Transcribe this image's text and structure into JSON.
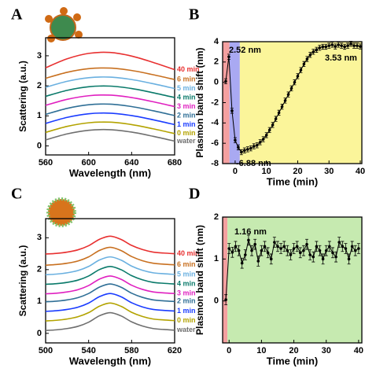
{
  "chart_data": [
    {
      "type": "line",
      "label": "A",
      "xlabel": "Wavelength (nm)",
      "ylabel": "Scattering (a.u.)",
      "xlim": [
        560,
        680
      ],
      "xticks": [
        560,
        600,
        640,
        680
      ],
      "ylim": [
        -0.3,
        3.6
      ],
      "yticks": [
        0,
        1,
        2,
        3
      ],
      "x": [
        560,
        580,
        600,
        620,
        640,
        660,
        680
      ],
      "series": [
        {
          "name": "water",
          "color": "#6f6f6f",
          "values": [
            0.2,
            0.4,
            0.52,
            0.54,
            0.46,
            0.32,
            0.16
          ]
        },
        {
          "name": "0 min",
          "color": "#b3a300",
          "values": [
            0.45,
            0.65,
            0.77,
            0.79,
            0.71,
            0.57,
            0.41
          ]
        },
        {
          "name": "1 min",
          "color": "#1a3cff",
          "values": [
            0.75,
            0.95,
            1.07,
            1.09,
            1.01,
            0.87,
            0.71
          ]
        },
        {
          "name": "2 min",
          "color": "#2f6f96",
          "values": [
            1.05,
            1.25,
            1.37,
            1.39,
            1.31,
            1.17,
            1.01
          ]
        },
        {
          "name": "3 min",
          "color": "#e020c0",
          "values": [
            1.35,
            1.55,
            1.67,
            1.69,
            1.61,
            1.47,
            1.31
          ]
        },
        {
          "name": "4 min",
          "color": "#0a7a6a",
          "values": [
            1.65,
            1.85,
            1.97,
            1.99,
            1.91,
            1.77,
            1.61
          ]
        },
        {
          "name": "5 min",
          "color": "#6ab0e0",
          "values": [
            1.95,
            2.15,
            2.27,
            2.29,
            2.21,
            2.07,
            1.91
          ]
        },
        {
          "name": "6 min",
          "color": "#c87020",
          "values": [
            2.25,
            2.45,
            2.57,
            2.59,
            2.51,
            2.37,
            2.21
          ]
        },
        {
          "name": "40 min",
          "color": "#e83030",
          "values": [
            2.6,
            2.9,
            3.08,
            3.11,
            2.99,
            2.78,
            2.54
          ]
        }
      ]
    },
    {
      "type": "errorbar",
      "label": "B",
      "xlabel": "Time (min)",
      "ylabel": "Plasmon band shift (nm)",
      "xlim": [
        -4,
        40.5
      ],
      "xticks": [
        0,
        10,
        20,
        30,
        40
      ],
      "ylim": [
        -8,
        4
      ],
      "yticks": [
        -8,
        -6,
        -4,
        -2,
        0,
        2,
        4
      ],
      "bands": [
        {
          "from": -4,
          "to": -1.8,
          "color": "#f4a0a0"
        },
        {
          "from": -1.8,
          "to": 1.5,
          "color": "#a9a9f2"
        },
        {
          "from": 1.5,
          "to": 40.5,
          "color": "#fbf59a"
        }
      ],
      "annotations": [
        "2.52 nm",
        "-6.88 nm",
        "3.53 nm"
      ],
      "error": 0.25,
      "color": "#000000",
      "x": [
        -3,
        -2,
        -1,
        0,
        1,
        2,
        3,
        4,
        5,
        6,
        7,
        8,
        9,
        10,
        11,
        12,
        13,
        14,
        15,
        16,
        17,
        18,
        19,
        20,
        21,
        22,
        23,
        24,
        25,
        26,
        27,
        28,
        29,
        30,
        31,
        32,
        33,
        34,
        35,
        36,
        37,
        38,
        39,
        40
      ],
      "values": [
        0.1,
        2.52,
        -2.8,
        -5.7,
        -6.4,
        -6.88,
        -6.7,
        -6.6,
        -6.5,
        -6.3,
        -6.2,
        -5.9,
        -5.6,
        -5.2,
        -4.7,
        -4.2,
        -3.6,
        -3.0,
        -2.4,
        -1.8,
        -1.2,
        -0.6,
        0.0,
        0.6,
        1.2,
        1.8,
        2.3,
        2.7,
        3.0,
        3.2,
        3.4,
        3.5,
        3.5,
        3.6,
        3.7,
        3.53,
        3.7,
        3.6,
        3.5,
        3.6,
        3.8,
        3.6,
        3.6,
        3.53
      ]
    },
    {
      "type": "line",
      "label": "C",
      "xlabel": "Wavelength (nm)",
      "ylabel": "Scattering (a.u.)",
      "xlim": [
        500,
        620
      ],
      "xticks": [
        500,
        540,
        580,
        620
      ],
      "ylim": [
        -0.3,
        3.6
      ],
      "yticks": [
        0,
        1,
        2,
        3
      ],
      "x": [
        500,
        510,
        520,
        530,
        540,
        550,
        560,
        570,
        580,
        590,
        600,
        610,
        620
      ],
      "series": [
        {
          "name": "water",
          "color": "#6f6f6f",
          "values": [
            0.09,
            0.11,
            0.15,
            0.22,
            0.35,
            0.55,
            0.65,
            0.55,
            0.36,
            0.23,
            0.15,
            0.12,
            0.1
          ]
        },
        {
          "name": "0 min",
          "color": "#b3a300",
          "values": [
            0.39,
            0.41,
            0.45,
            0.52,
            0.65,
            0.85,
            0.95,
            0.85,
            0.66,
            0.53,
            0.45,
            0.42,
            0.4
          ]
        },
        {
          "name": "1 min",
          "color": "#1a3cff",
          "values": [
            0.69,
            0.71,
            0.75,
            0.82,
            0.95,
            1.15,
            1.25,
            1.15,
            0.96,
            0.83,
            0.75,
            0.72,
            0.7
          ]
        },
        {
          "name": "2 min",
          "color": "#2f6f96",
          "values": [
            0.99,
            1.01,
            1.05,
            1.12,
            1.25,
            1.45,
            1.55,
            1.45,
            1.26,
            1.13,
            1.05,
            1.02,
            1.0
          ]
        },
        {
          "name": "3 min",
          "color": "#e020c0",
          "values": [
            1.24,
            1.26,
            1.3,
            1.37,
            1.5,
            1.7,
            1.8,
            1.7,
            1.51,
            1.38,
            1.3,
            1.27,
            1.25
          ]
        },
        {
          "name": "4 min",
          "color": "#0a7a6a",
          "values": [
            1.54,
            1.56,
            1.6,
            1.67,
            1.8,
            2.0,
            2.1,
            2.0,
            1.81,
            1.68,
            1.6,
            1.57,
            1.55
          ]
        },
        {
          "name": "5 min",
          "color": "#6ab0e0",
          "values": [
            1.84,
            1.86,
            1.9,
            1.97,
            2.1,
            2.3,
            2.4,
            2.3,
            2.11,
            1.98,
            1.9,
            1.87,
            1.85
          ]
        },
        {
          "name": "6 min",
          "color": "#c87020",
          "values": [
            2.14,
            2.16,
            2.2,
            2.27,
            2.4,
            2.6,
            2.7,
            2.6,
            2.41,
            2.28,
            2.2,
            2.17,
            2.15
          ]
        },
        {
          "name": "40 min",
          "color": "#e83030",
          "values": [
            2.49,
            2.51,
            2.55,
            2.62,
            2.75,
            2.95,
            3.05,
            2.95,
            2.76,
            2.63,
            2.55,
            2.52,
            2.5
          ]
        }
      ]
    },
    {
      "type": "errorbar",
      "label": "D",
      "xlabel": "Time (min)",
      "ylabel": "Plasmon band shift (nm)",
      "xlim": [
        -2,
        41
      ],
      "xticks": [
        0,
        10,
        20,
        30,
        40
      ],
      "ylim": [
        -1,
        2
      ],
      "yticks": [
        0,
        1,
        2
      ],
      "bands": [
        {
          "from": -2,
          "to": -0.5,
          "color": "#f4a0a0"
        },
        {
          "from": -0.5,
          "to": 41,
          "color": "#c6eab0"
        }
      ],
      "annotations": [
        "1.16 nm"
      ],
      "error": 0.12,
      "color": "#000000",
      "x": [
        -1,
        0,
        1,
        2,
        3,
        4,
        5,
        6,
        7,
        8,
        9,
        10,
        11,
        12,
        13,
        14,
        15,
        16,
        17,
        18,
        19,
        20,
        21,
        22,
        23,
        24,
        25,
        26,
        27,
        28,
        29,
        30,
        31,
        32,
        33,
        34,
        35,
        36,
        37,
        38,
        39,
        40
      ],
      "values": [
        0.03,
        1.25,
        1.16,
        1.3,
        1.2,
        0.9,
        1.1,
        1.45,
        1.2,
        1.35,
        0.95,
        1.2,
        1.3,
        1.15,
        1.0,
        1.4,
        1.3,
        1.25,
        1.3,
        1.2,
        1.1,
        1.25,
        1.3,
        1.15,
        1.2,
        1.35,
        1.1,
        1.05,
        1.3,
        1.2,
        1.0,
        1.2,
        1.3,
        1.15,
        1.05,
        1.4,
        1.3,
        1.25,
        1.0,
        1.3,
        1.2,
        1.25
      ]
    }
  ]
}
